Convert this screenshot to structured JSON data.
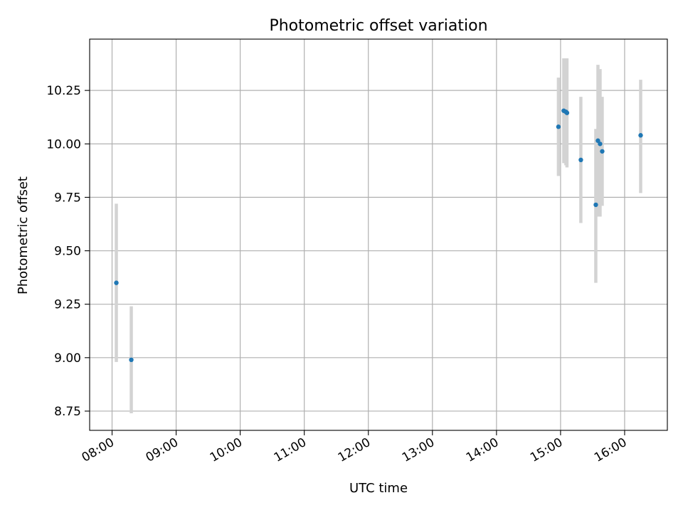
{
  "chart_data": {
    "type": "scatter",
    "title": "Photometric offset variation",
    "xlabel": "UTC time",
    "ylabel": "Photometric offset",
    "x_axis_type": "time",
    "xlim": [
      "07:39",
      "16:40"
    ],
    "ylim": [
      8.66,
      10.49
    ],
    "xticks": [
      "08:00",
      "09:00",
      "10:00",
      "11:00",
      "12:00",
      "13:00",
      "14:00",
      "15:00",
      "16:00"
    ],
    "yticks": [
      "8.75",
      "9.00",
      "9.25",
      "9.50",
      "9.75",
      "10.00",
      "10.25"
    ],
    "grid": true,
    "legend": "none",
    "colors": {
      "point": "#1f77b4",
      "errorbar": "#d3d3d3",
      "grid": "#b0b0b0",
      "axes": "#000000"
    },
    "series": [
      {
        "points": [
          {
            "x": "08:04",
            "y": 9.35,
            "yerr_low": 8.98,
            "yerr_high": 9.72
          },
          {
            "x": "08:18",
            "y": 8.99,
            "yerr_low": 8.74,
            "yerr_high": 9.24
          },
          {
            "x": "14:58",
            "y": 10.08,
            "yerr_low": 9.85,
            "yerr_high": 10.31
          },
          {
            "x": "15:03",
            "y": 10.155,
            "yerr_low": 9.91,
            "yerr_high": 10.4
          },
          {
            "x": "15:05",
            "y": 10.15,
            "yerr_low": 9.9,
            "yerr_high": 10.4
          },
          {
            "x": "15:06",
            "y": 10.145,
            "yerr_low": 9.89,
            "yerr_high": 10.4
          },
          {
            "x": "15:19",
            "y": 9.925,
            "yerr_low": 9.63,
            "yerr_high": 10.22
          },
          {
            "x": "15:33",
            "y": 9.715,
            "yerr_low": 9.35,
            "yerr_high": 10.07
          },
          {
            "x": "15:35",
            "y": 10.015,
            "yerr_low": 9.66,
            "yerr_high": 10.37
          },
          {
            "x": "15:37",
            "y": 10.0,
            "yerr_low": 9.66,
            "yerr_high": 10.35
          },
          {
            "x": "15:39",
            "y": 9.965,
            "yerr_low": 9.71,
            "yerr_high": 10.22
          },
          {
            "x": "16:15",
            "y": 10.04,
            "yerr_low": 9.77,
            "yerr_high": 10.3
          }
        ]
      }
    ]
  }
}
